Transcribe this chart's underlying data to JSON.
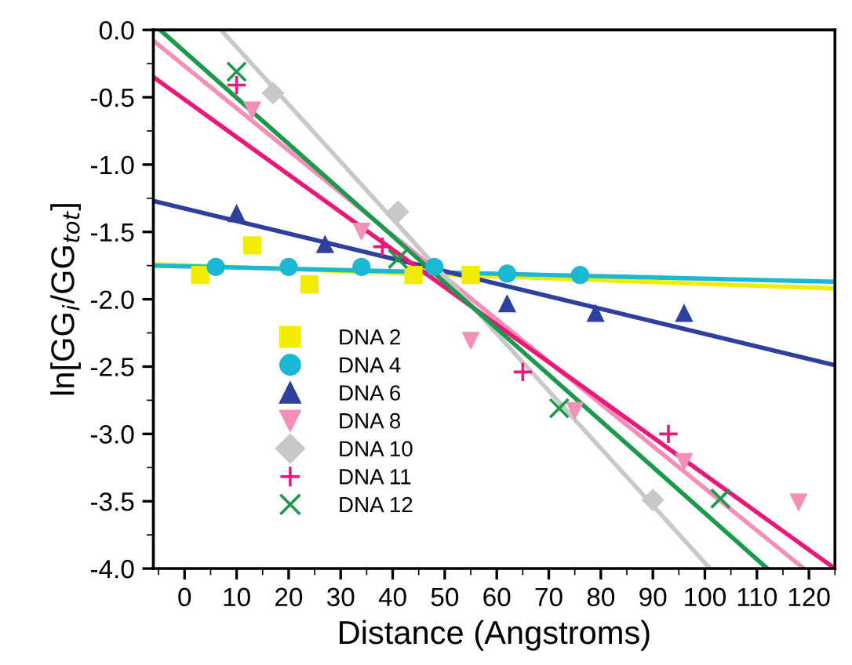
{
  "chart_data": {
    "type": "scatter",
    "xlabel": "Distance (Angstroms)",
    "ylabel": "ln[GG$_{i}$/GG$_{tot}$]",
    "xlim": [
      -6,
      125
    ],
    "ylim": [
      -4,
      0
    ],
    "xticks": [
      0,
      10,
      20,
      30,
      40,
      50,
      60,
      70,
      80,
      90,
      100,
      110,
      120
    ],
    "yticks": [
      {
        "value": -4,
        "label": "-4.0"
      },
      {
        "value": -3.5,
        "label": "-3.5"
      },
      {
        "value": -3,
        "label": "-3.0"
      },
      {
        "value": -2.5,
        "label": "-2.5"
      },
      {
        "value": -2,
        "label": "-2.0"
      },
      {
        "value": -1.5,
        "label": "-1.5"
      },
      {
        "value": -1,
        "label": "-1.0"
      },
      {
        "value": -0.5,
        "label": "-0.5"
      },
      {
        "value": 0,
        "label": "0.0"
      }
    ],
    "grid": false,
    "legend": "bottom left",
    "series": [
      {
        "name": "DNA 2",
        "color": "#f2ec00",
        "marker": "square",
        "x": [
          3,
          13,
          24,
          44,
          55
        ],
        "values": [
          -1.82,
          -1.6,
          -1.89,
          -1.82,
          -1.82
        ]
      },
      {
        "name": "DNA 4",
        "color": "#1ab8d2",
        "marker": "circle",
        "x": [
          6,
          20,
          34,
          48,
          62,
          76
        ],
        "values": [
          -1.76,
          -1.76,
          -1.76,
          -1.76,
          -1.81,
          -1.82
        ]
      },
      {
        "name": "DNA 6",
        "color": "#2e3f9e",
        "marker": "triangle",
        "x": [
          10,
          27,
          62,
          79,
          96
        ],
        "values": [
          -1.36,
          -1.59,
          -2.03,
          -2.1,
          -2.1
        ]
      },
      {
        "name": "DNA 8",
        "color": "#f48fb8",
        "marker": "triangle_down",
        "x": [
          13,
          34,
          55,
          75,
          96,
          118
        ],
        "values": [
          -0.6,
          -1.5,
          -2.31,
          -2.83,
          -3.21,
          -3.51
        ]
      },
      {
        "name": "DNA 10",
        "color": "#c8c8c8",
        "marker": "diamond",
        "x": [
          17,
          41,
          90
        ],
        "values": [
          -0.47,
          -1.35,
          -3.49
        ]
      },
      {
        "name": "DNA 11",
        "color": "#e8197a",
        "marker": "plus",
        "x": [
          10,
          38,
          65,
          93
        ],
        "values": [
          -0.41,
          -1.61,
          -2.54,
          -3.0
        ]
      },
      {
        "name": "DNA 12",
        "color": "#1a9a4a",
        "marker": "cross",
        "x": [
          10,
          41,
          72,
          103
        ],
        "values": [
          -0.31,
          -1.7,
          -2.81,
          -3.48
        ]
      },
      {
        "type": "line",
        "color": "#f2ec00",
        "x": [
          -6,
          125
        ],
        "values": [
          -1.74,
          -1.92
        ]
      },
      {
        "type": "line",
        "color": "#1ab8d2",
        "x": [
          -6,
          125
        ],
        "values": [
          -1.75,
          -1.87
        ]
      },
      {
        "type": "line",
        "color": "#2e3f9e",
        "x": [
          -6,
          125
        ],
        "values": [
          -1.27,
          -2.49
        ]
      },
      {
        "type": "line",
        "color": "#f48fb8",
        "x": [
          -6,
          119
        ],
        "values": [
          -0.08,
          -4
        ]
      },
      {
        "type": "line",
        "color": "#c8c8c8",
        "x": [
          7,
          101
        ],
        "values": [
          0,
          -4
        ]
      },
      {
        "type": "line",
        "color": "#e8197a",
        "x": [
          -6,
          125
        ],
        "values": [
          -0.35,
          -4
        ]
      },
      {
        "type": "line",
        "color": "#1a9a4a",
        "x": [
          -4.7,
          112
        ],
        "values": [
          0,
          -4
        ]
      }
    ]
  }
}
